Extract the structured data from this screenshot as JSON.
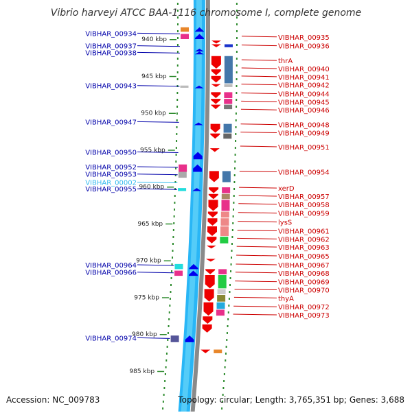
{
  "title": "Vibrio harveyi ATCC BAA-1116 chromosome I, complete genome",
  "accession": "Accession: NC_009783",
  "summary": "Topology: circular; Length: 3,765,351 bp; Genes: 3,688",
  "colors": {
    "forward_label": "#0000aa",
    "reverse_label": "#cc0000",
    "highlight_label": "#33bbee",
    "forward_track": "#29b6f6",
    "backbone": "#8a8a8a",
    "forward_gene": "#0000ee",
    "reverse_gene": "#ee0000",
    "ticks": "#2e8b2e"
  },
  "scale_labels": [
    {
      "kbp": 940,
      "text": "940 kbp"
    },
    {
      "kbp": 945,
      "text": "945 kbp"
    },
    {
      "kbp": 950,
      "text": "950 kbp"
    },
    {
      "kbp": 955,
      "text": "955 kbp"
    },
    {
      "kbp": 960,
      "text": "960 kbp"
    },
    {
      "kbp": 965,
      "text": "965 kbp"
    },
    {
      "kbp": 970,
      "text": "970 kbp"
    },
    {
      "kbp": 975,
      "text": "975 kbp"
    },
    {
      "kbp": 980,
      "text": "980 kbp"
    },
    {
      "kbp": 985,
      "text": "985 kbp"
    }
  ],
  "left_labels": [
    {
      "text": "VIBHAR_00934",
      "kbp": 939.2,
      "style": "forward"
    },
    {
      "text": "VIBHAR_00937",
      "kbp": 940.9,
      "style": "forward"
    },
    {
      "text": "VIBHAR_00938",
      "kbp": 941.8,
      "style": "forward"
    },
    {
      "text": "VIBHAR_00943",
      "kbp": 946.3,
      "style": "forward"
    },
    {
      "text": "VIBHAR_00947",
      "kbp": 951.2,
      "style": "forward"
    },
    {
      "text": "VIBHAR_00950",
      "kbp": 955.3,
      "style": "forward"
    },
    {
      "text": "VIBHAR_00952",
      "kbp": 957.3,
      "style": "forward"
    },
    {
      "text": "VIBHAR_00953",
      "kbp": 958.3,
      "style": "forward"
    },
    {
      "text": "VIBHAR_00002",
      "kbp": 959.4,
      "style": "highlight"
    },
    {
      "text": "VIBHAR_00955",
      "kbp": 960.3,
      "style": "forward"
    },
    {
      "text": "VIBHAR_00964",
      "kbp": 970.6,
      "style": "forward"
    },
    {
      "text": "VIBHAR_00966",
      "kbp": 971.6,
      "style": "forward"
    },
    {
      "text": "VIBHAR_00974",
      "kbp": 980.5,
      "style": "forward"
    }
  ],
  "right_labels": [
    {
      "text": "VIBHAR_00935",
      "kbp": 939.7
    },
    {
      "text": "VIBHAR_00936",
      "kbp": 940.9
    },
    {
      "text": "thrA",
      "kbp": 942.9
    },
    {
      "text": "VIBHAR_00940",
      "kbp": 944.0
    },
    {
      "text": "VIBHAR_00941",
      "kbp": 945.1
    },
    {
      "text": "VIBHAR_00942",
      "kbp": 946.2
    },
    {
      "text": "VIBHAR_00944",
      "kbp": 947.4
    },
    {
      "text": "VIBHAR_00945",
      "kbp": 948.5
    },
    {
      "text": "VIBHAR_00946",
      "kbp": 949.6
    },
    {
      "text": "VIBHAR_00948",
      "kbp": 951.6
    },
    {
      "text": "VIBHAR_00949",
      "kbp": 952.7
    },
    {
      "text": "VIBHAR_00951",
      "kbp": 954.6
    },
    {
      "text": "VIBHAR_00954",
      "kbp": 958.0
    },
    {
      "text": "xerD",
      "kbp": 960.2
    },
    {
      "text": "VIBHAR_00957",
      "kbp": 961.3
    },
    {
      "text": "VIBHAR_00958",
      "kbp": 962.4
    },
    {
      "text": "VIBHAR_00959",
      "kbp": 963.6
    },
    {
      "text": "lysS",
      "kbp": 964.8
    },
    {
      "text": "VIBHAR_00961",
      "kbp": 966.0
    },
    {
      "text": "VIBHAR_00962",
      "kbp": 967.1
    },
    {
      "text": "VIBHAR_00963",
      "kbp": 968.2
    },
    {
      "text": "VIBHAR_00965",
      "kbp": 969.4
    },
    {
      "text": "VIBHAR_00967",
      "kbp": 970.6
    },
    {
      "text": "VIBHAR_00968",
      "kbp": 971.7
    },
    {
      "text": "VIBHAR_00969",
      "kbp": 972.9
    },
    {
      "text": "VIBHAR_00970",
      "kbp": 974.0
    },
    {
      "text": "thyA",
      "kbp": 975.1
    },
    {
      "text": "VIBHAR_00972",
      "kbp": 976.3
    },
    {
      "text": "VIBHAR_00973",
      "kbp": 977.4
    }
  ],
  "forward_genes": [
    {
      "start": 938.4,
      "end": 939.0
    },
    {
      "start": 939.3,
      "end": 940.0
    },
    {
      "start": 941.3,
      "end": 941.6
    },
    {
      "start": 941.7,
      "end": 942.0
    },
    {
      "start": 946.3,
      "end": 946.6
    },
    {
      "start": 951.3,
      "end": 951.6
    },
    {
      "start": 955.3,
      "end": 956.3
    },
    {
      "start": 957.0,
      "end": 958.0
    },
    {
      "start": 960.2,
      "end": 960.6
    },
    {
      "start": 970.5,
      "end": 971.2
    },
    {
      "start": 971.4,
      "end": 972.1
    },
    {
      "start": 980.2,
      "end": 981.1
    }
  ],
  "reverse_genes": [
    {
      "start": 940.2,
      "end": 940.6
    },
    {
      "start": 940.7,
      "end": 941.1
    },
    {
      "start": 942.3,
      "end": 944.0
    },
    {
      "start": 944.1,
      "end": 944.9
    },
    {
      "start": 945.0,
      "end": 945.9
    },
    {
      "start": 946.1,
      "end": 946.5
    },
    {
      "start": 947.2,
      "end": 948.0
    },
    {
      "start": 948.1,
      "end": 948.8
    },
    {
      "start": 948.9,
      "end": 949.5
    },
    {
      "start": 951.5,
      "end": 952.7
    },
    {
      "start": 952.8,
      "end": 953.5
    },
    {
      "start": 954.8,
      "end": 955.3
    },
    {
      "start": 957.9,
      "end": 959.4
    },
    {
      "start": 960.1,
      "end": 960.9
    },
    {
      "start": 961.0,
      "end": 961.7
    },
    {
      "start": 961.8,
      "end": 963.3
    },
    {
      "start": 963.4,
      "end": 964.2
    },
    {
      "start": 964.3,
      "end": 965.3
    },
    {
      "start": 965.4,
      "end": 966.7
    },
    {
      "start": 966.8,
      "end": 967.7
    },
    {
      "start": 968.0,
      "end": 968.4
    },
    {
      "start": 969.8,
      "end": 970.1
    },
    {
      "start": 971.2,
      "end": 971.9
    },
    {
      "start": 972.0,
      "end": 973.8
    },
    {
      "start": 973.9,
      "end": 975.6
    },
    {
      "start": 975.7,
      "end": 977.5
    },
    {
      "start": 977.6,
      "end": 978.6
    },
    {
      "start": 978.7,
      "end": 979.8
    },
    {
      "start": 982.1,
      "end": 982.6
    }
  ],
  "cog_inner": [
    {
      "start": 938.4,
      "end": 939.0,
      "color": "#e8862a"
    },
    {
      "start": 939.3,
      "end": 940.0,
      "color": "#e8308a"
    },
    {
      "start": 946.3,
      "end": 946.6,
      "color": "#bbbbbb"
    },
    {
      "start": 957.0,
      "end": 958.0,
      "color": "#e8308a"
    },
    {
      "start": 958.0,
      "end": 958.8,
      "color": "#aaaaaa"
    },
    {
      "start": 960.2,
      "end": 960.6,
      "color": "#22dddd"
    },
    {
      "start": 970.5,
      "end": 971.2,
      "color": "#22dddd"
    },
    {
      "start": 971.4,
      "end": 972.1,
      "color": "#e8308a"
    },
    {
      "start": 980.2,
      "end": 981.1,
      "color": "#555599"
    }
  ],
  "cog_outer": [
    {
      "start": 940.7,
      "end": 941.1,
      "color": "#1a33cc"
    },
    {
      "start": 942.3,
      "end": 946.0,
      "color": "#4477aa"
    },
    {
      "start": 946.1,
      "end": 946.5,
      "color": "#bbbbbb"
    },
    {
      "start": 947.2,
      "end": 948.0,
      "color": "#e8308a"
    },
    {
      "start": 948.1,
      "end": 948.8,
      "color": "#e8308a"
    },
    {
      "start": 948.9,
      "end": 949.5,
      "color": "#777777"
    },
    {
      "start": 951.5,
      "end": 952.7,
      "color": "#4477aa"
    },
    {
      "start": 952.8,
      "end": 953.5,
      "color": "#666666"
    },
    {
      "start": 957.9,
      "end": 959.4,
      "color": "#4477aa"
    },
    {
      "start": 960.1,
      "end": 960.9,
      "color": "#e8308a"
    },
    {
      "start": 961.0,
      "end": 961.7,
      "color": "#aa8866"
    },
    {
      "start": 961.8,
      "end": 963.3,
      "color": "#e8308a"
    },
    {
      "start": 963.4,
      "end": 964.2,
      "color": "#ee8888"
    },
    {
      "start": 964.3,
      "end": 965.3,
      "color": "#ee8888"
    },
    {
      "start": 965.4,
      "end": 966.7,
      "color": "#ee8888"
    },
    {
      "start": 966.8,
      "end": 967.7,
      "color": "#22cc44"
    },
    {
      "start": 971.2,
      "end": 971.9,
      "color": "#e8308a"
    },
    {
      "start": 972.0,
      "end": 973.8,
      "color": "#22cc44"
    },
    {
      "start": 973.9,
      "end": 974.6,
      "color": "#cccccc"
    },
    {
      "start": 974.7,
      "end": 975.6,
      "color": "#888833"
    },
    {
      "start": 975.7,
      "end": 976.6,
      "color": "#22aadd"
    },
    {
      "start": 976.7,
      "end": 977.5,
      "color": "#e8308a"
    },
    {
      "start": 982.1,
      "end": 982.6,
      "color": "#e8862a"
    }
  ]
}
